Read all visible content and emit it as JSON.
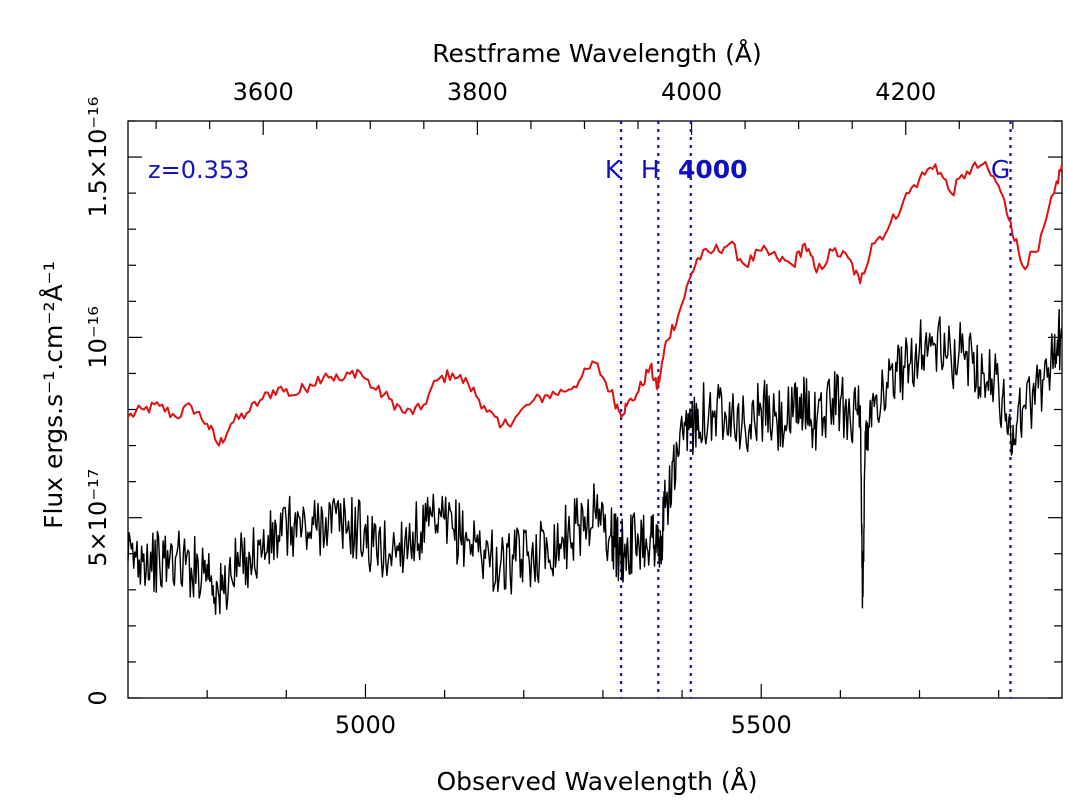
{
  "chart_data": {
    "type": "line",
    "title": "",
    "xlabel": "Observed Wavelength (Å)",
    "x2label": "Restframe Wavelength (Å)",
    "ylabel": "Flux ergs.s⁻¹.cm⁻²Å⁻¹",
    "xlim": [
      4700,
      5880
    ],
    "ylim": [
      0,
      1.6e-16
    ],
    "redshift_note": "z=0.353",
    "x_ticks": [
      {
        "value": 5000,
        "label": "5000"
      },
      {
        "value": 5500,
        "label": "5500"
      }
    ],
    "x2_ticks": [
      {
        "value": 3600,
        "label": "3600"
      },
      {
        "value": 3800,
        "label": "3800"
      },
      {
        "value": 4000,
        "label": "4000"
      },
      {
        "value": 4200,
        "label": "4200"
      }
    ],
    "y_ticks": [
      {
        "value": 0,
        "label": "0"
      },
      {
        "value": 5e-17,
        "label": "5×10⁻¹⁷"
      },
      {
        "value": 1e-16,
        "label": "10⁻¹⁶"
      },
      {
        "value": 1.5e-16,
        "label": "1.5×10⁻¹⁶"
      }
    ],
    "spectral_lines": [
      {
        "name": "K",
        "observed": 5323,
        "color": "#1010c0"
      },
      {
        "name": "H",
        "observed": 5370,
        "color": "#1010c0"
      },
      {
        "name": "4000",
        "observed": 5411,
        "color": "#1010c0"
      },
      {
        "name": "G",
        "observed": 5815,
        "color": "#1010c0"
      }
    ],
    "series": [
      {
        "name": "template (red)",
        "color": "#dd1111",
        "x": [
          4700,
          4720,
          4740,
          4760,
          4780,
          4800,
          4815,
          4830,
          4850,
          4870,
          4890,
          4910,
          4930,
          4950,
          4970,
          4990,
          5010,
          5030,
          5050,
          5070,
          5090,
          5110,
          5130,
          5150,
          5170,
          5190,
          5210,
          5230,
          5250,
          5270,
          5290,
          5310,
          5322,
          5330,
          5345,
          5360,
          5368,
          5372,
          5380,
          5395,
          5411,
          5420,
          5440,
          5460,
          5480,
          5500,
          5520,
          5540,
          5555,
          5570,
          5590,
          5610,
          5625,
          5640,
          5660,
          5680,
          5700,
          5720,
          5740,
          5760,
          5780,
          5800,
          5815,
          5830,
          5850,
          5870,
          5880
        ],
        "values": [
          7.8e-17,
          8e-17,
          8.1e-17,
          7.8e-17,
          8.1e-17,
          7.6e-17,
          7e-17,
          7.6e-17,
          7.9e-17,
          8.3e-17,
          8.6e-17,
          8.4e-17,
          8.7e-17,
          9e-17,
          8.8e-17,
          9.1e-17,
          8.6e-17,
          8.3e-17,
          7.9e-17,
          8e-17,
          8.8e-17,
          9e-17,
          8.7e-17,
          8.1e-17,
          7.5e-17,
          7.8e-17,
          8.2e-17,
          8.4e-17,
          8.5e-17,
          8.8e-17,
          9.3e-17,
          8.5e-17,
          7.9e-17,
          8.1e-17,
          8.5e-17,
          9.2e-17,
          8.6e-17,
          8.9e-17,
          9.9e-17,
          1.06e-16,
          1.17e-16,
          1.22e-16,
          1.24e-16,
          1.26e-16,
          1.2e-16,
          1.24e-16,
          1.22e-16,
          1.2e-16,
          1.26e-16,
          1.18e-16,
          1.24e-16,
          1.22e-16,
          1.15e-16,
          1.26e-16,
          1.3e-16,
          1.38e-16,
          1.44e-16,
          1.48e-16,
          1.4e-16,
          1.46e-16,
          1.48e-16,
          1.42e-16,
          1.32e-16,
          1.2e-16,
          1.24e-16,
          1.4e-16,
          1.48e-16
        ]
      },
      {
        "name": "observed spectrum (black)",
        "color": "#000000",
        "x": [
          4700,
          4720,
          4740,
          4760,
          4780,
          4800,
          4815,
          4830,
          4850,
          4870,
          4890,
          4910,
          4930,
          4950,
          4970,
          4990,
          5010,
          5030,
          5050,
          5070,
          5090,
          5110,
          5130,
          5150,
          5170,
          5190,
          5210,
          5230,
          5250,
          5270,
          5290,
          5310,
          5322,
          5330,
          5345,
          5360,
          5368,
          5372,
          5380,
          5395,
          5411,
          5420,
          5440,
          5460,
          5480,
          5500,
          5520,
          5540,
          5555,
          5570,
          5590,
          5610,
          5625,
          5628,
          5632,
          5640,
          5660,
          5680,
          5700,
          5720,
          5740,
          5760,
          5780,
          5800,
          5815,
          5830,
          5850,
          5870,
          5880
        ],
        "values": [
          3.8e-17,
          4e-17,
          3.7e-17,
          3.9e-17,
          3.6e-17,
          3.7e-17,
          2.8e-17,
          3.4e-17,
          3.9e-17,
          4.1e-17,
          4.5e-17,
          4.8e-17,
          4.6e-17,
          5e-17,
          4.8e-17,
          4.7e-17,
          4.2e-17,
          4e-17,
          4.4e-17,
          4.6e-17,
          4.8e-17,
          4.7e-17,
          4.4e-17,
          4.1e-17,
          3.6e-17,
          3.8e-17,
          4e-17,
          4.2e-17,
          4.4e-17,
          4.8e-17,
          5.2e-17,
          4.5e-17,
          4e-17,
          4.2e-17,
          4.4e-17,
          4.5e-17,
          4.4e-17,
          3.9e-17,
          5.5e-17,
          6.7e-17,
          7.5e-17,
          8e-17,
          7.8e-17,
          8.2e-17,
          7.4e-17,
          8e-17,
          7.6e-17,
          7.8e-17,
          8.2e-17,
          7.6e-17,
          8.3e-17,
          8e-17,
          7.8e-17,
          2.8e-17,
          7.5e-17,
          8.2e-17,
          8.6e-17,
          9.2e-17,
          9.7e-17,
          9.8e-17,
          9.4e-17,
          9.6e-17,
          9e-17,
          8.6e-17,
          7.4e-17,
          8e-17,
          8.6e-17,
          9.6e-17,
          1.01e-16
        ]
      }
    ]
  }
}
